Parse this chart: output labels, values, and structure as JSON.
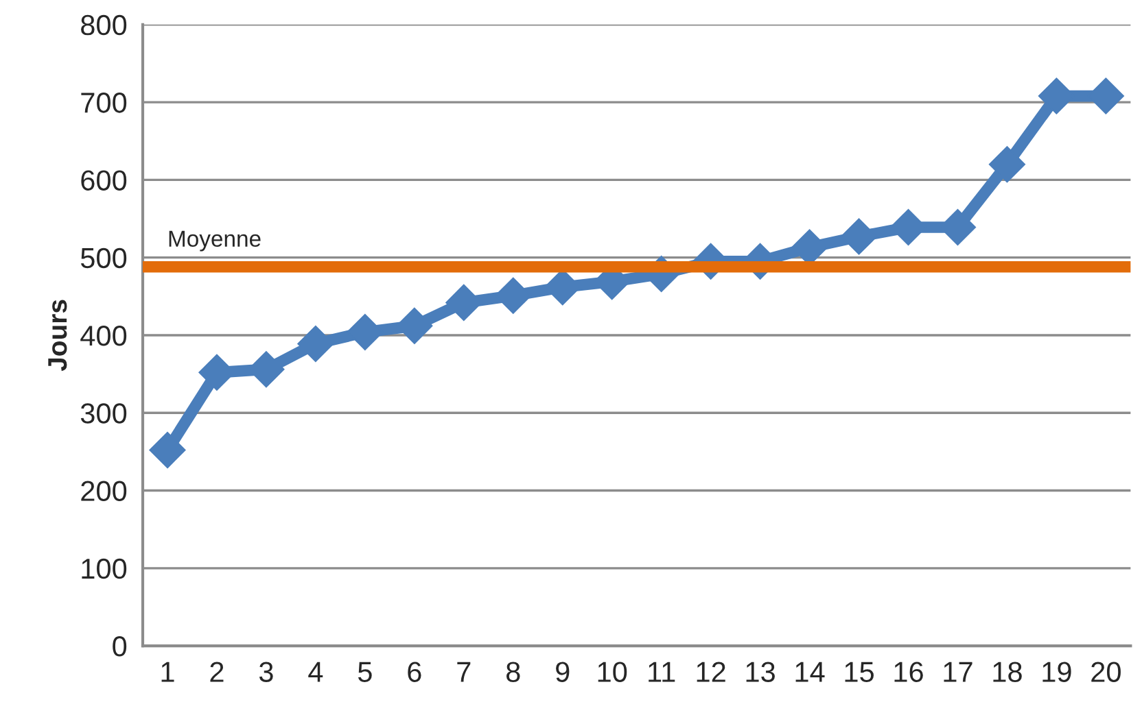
{
  "chart_data": {
    "type": "line",
    "ylabel": "Jours",
    "categories": [
      "1",
      "2",
      "3",
      "4",
      "5",
      "6",
      "7",
      "8",
      "9",
      "10",
      "11",
      "12",
      "13",
      "14",
      "15",
      "16",
      "17",
      "18",
      "19",
      "20"
    ],
    "series": [
      {
        "color": "#4a7ebb",
        "values": [
          252,
          352,
          356,
          389,
          404,
          412,
          442,
          451,
          462,
          469,
          479,
          495,
          495,
          513,
          527,
          539,
          539,
          620,
          708,
          708
        ]
      }
    ],
    "ylim": [
      0,
      800
    ],
    "yticks": [
      0,
      100,
      200,
      300,
      400,
      500,
      600,
      700,
      800
    ],
    "ref_lines": [
      {
        "axis": "y",
        "value": 488,
        "label": "Moyenne",
        "color": "#e36c0a"
      }
    ],
    "grid": "y",
    "marker": "diamond",
    "line_style": "solid"
  }
}
